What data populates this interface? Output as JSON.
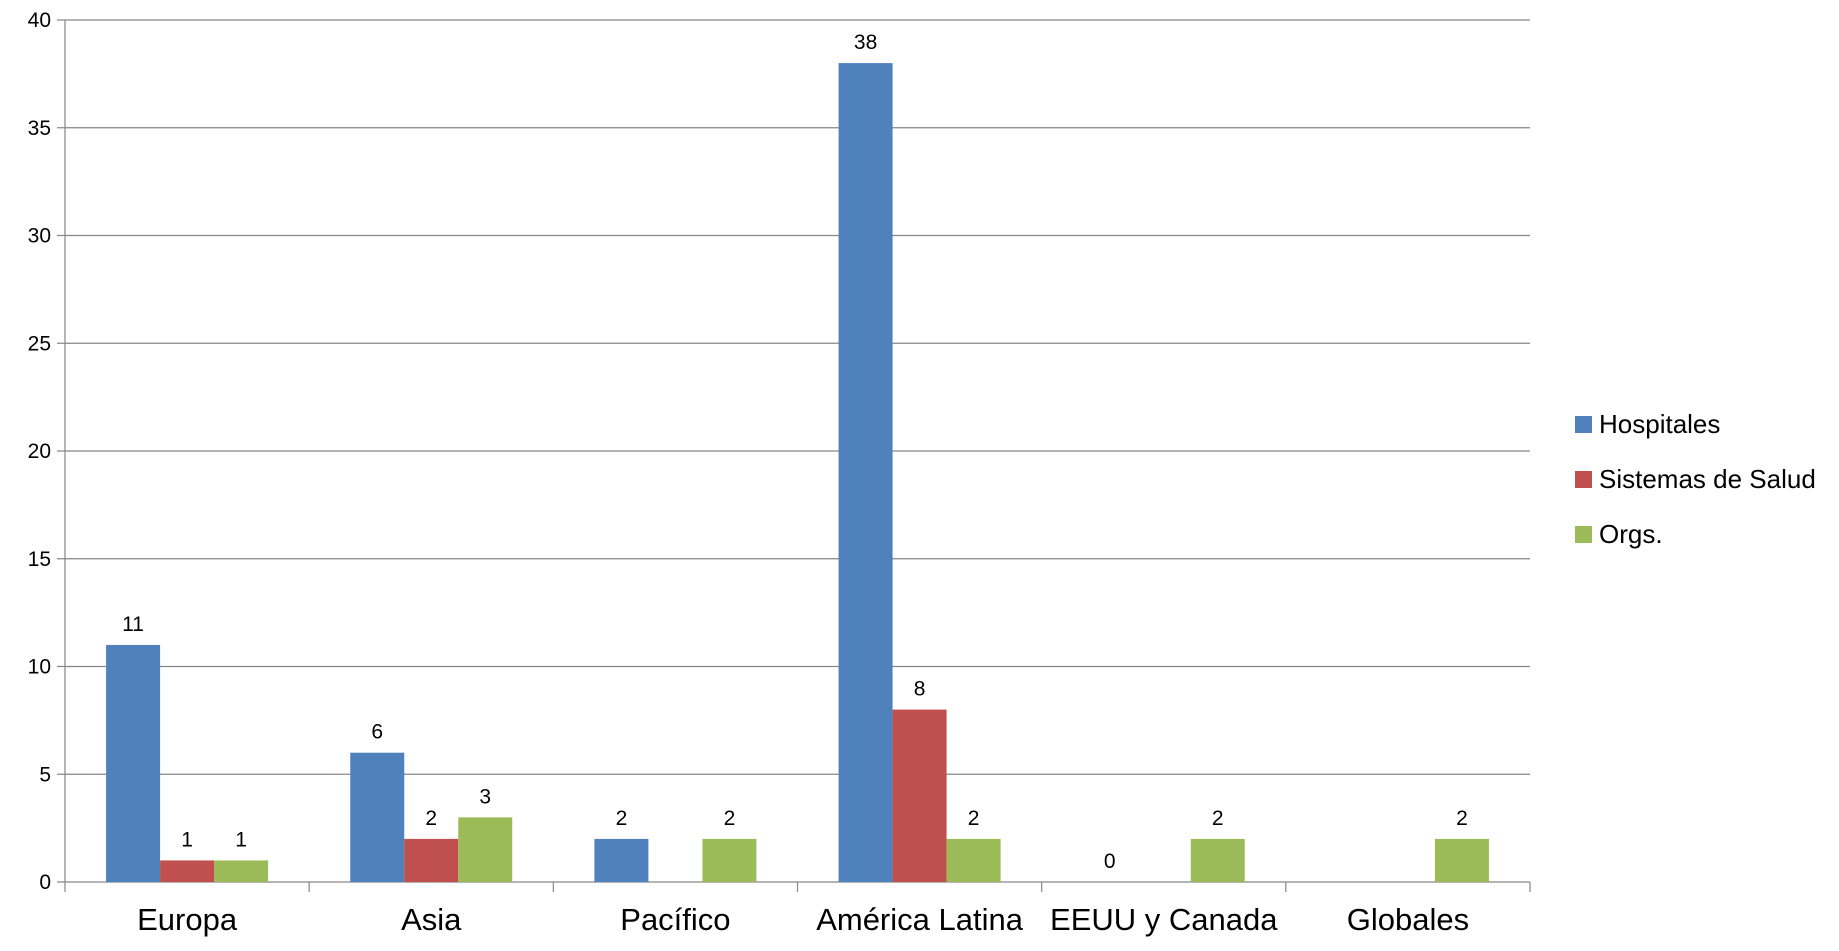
{
  "chart_data": {
    "type": "bar",
    "categories": [
      "Europa",
      "Asia",
      "Pacífico",
      "América Latina",
      "EEUU y Canada",
      "Globales"
    ],
    "series": [
      {
        "name": "Hospitales",
        "values": [
          11,
          6,
          2,
          38,
          null,
          null
        ],
        "labels": [
          "11",
          "6",
          "2",
          "38",
          "0",
          ""
        ],
        "color": "#4F81BD"
      },
      {
        "name": "Sistemas de Salud",
        "values": [
          1,
          2,
          null,
          8,
          null,
          null
        ],
        "labels": [
          "1",
          "2",
          "",
          "8",
          "",
          ""
        ],
        "color": "#C0504D"
      },
      {
        "name": "Orgs.",
        "values": [
          1,
          3,
          2,
          2,
          2,
          2
        ],
        "labels": [
          "1",
          "3",
          "2",
          "2",
          "2",
          "2"
        ],
        "color": "#9BBB59"
      }
    ],
    "yticks": [
      0,
      5,
      10,
      15,
      20,
      25,
      30,
      35,
      40
    ],
    "ylim": [
      0,
      40
    ],
    "grid": true,
    "legend_position": "right",
    "title": "",
    "xlabel": "",
    "ylabel": ""
  }
}
